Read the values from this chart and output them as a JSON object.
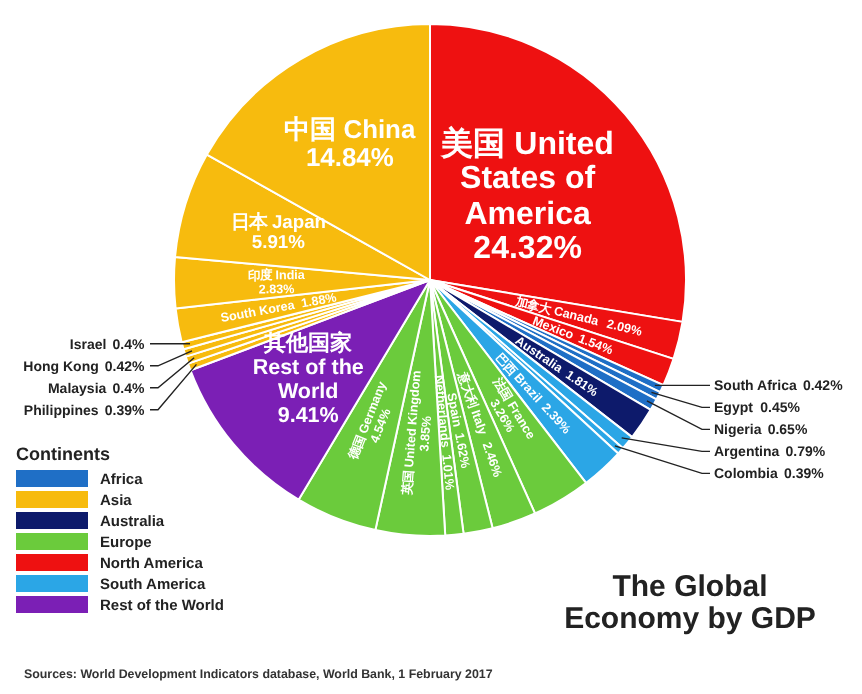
{
  "chart_data": {
    "type": "other",
    "title": "The Global Economy by GDP",
    "legend_title": "Continents",
    "legend": "bottom left",
    "annotations": [
      "Sources: World Development Indicators database, World Bank, 1 February 2017"
    ],
    "categories": [
      "美国 United States of America",
      "加拿大 Canada",
      "Mexico",
      "South Africa",
      "Egypt",
      "Nigeria",
      "Australia",
      "Argentina",
      "Colombia",
      "巴西 Brazil",
      "法国 France",
      "意大利 Italy",
      "Spain",
      "Netherlands",
      "英国 United Kingdom",
      "德国 Germany",
      "其他国家 Rest of the World",
      "Philippines",
      "Malaysia",
      "Hong Kong",
      "Israel",
      "South Korea",
      "印度 India",
      "日本 Japan",
      "中国 China"
    ],
    "series": [
      {
        "name": "Africa",
        "color": "#1f6fc6",
        "values": [
          null,
          null,
          null,
          0.42,
          0.45,
          0.65,
          null,
          null,
          null,
          null,
          null,
          null,
          null,
          null,
          null,
          null,
          null,
          null,
          null,
          null,
          null,
          null,
          null,
          null,
          null
        ],
        "value_labels": [
          null,
          null,
          null,
          "0.42%",
          "0.45%",
          "0.65%",
          null,
          null,
          null,
          null,
          null,
          null,
          null,
          null,
          null,
          null,
          null,
          null,
          null,
          null,
          null,
          null,
          null,
          null,
          null
        ]
      },
      {
        "name": "Asia",
        "color": "#f7bb0e",
        "values": [
          null,
          null,
          null,
          null,
          null,
          null,
          null,
          null,
          null,
          null,
          null,
          null,
          null,
          null,
          null,
          null,
          null,
          0.39,
          0.4,
          0.42,
          0.4,
          1.88,
          2.83,
          5.91,
          14.84
        ],
        "value_labels": [
          null,
          null,
          null,
          null,
          null,
          null,
          null,
          null,
          null,
          null,
          null,
          null,
          null,
          null,
          null,
          null,
          null,
          "0.39%",
          "0.4%",
          "0.42%",
          "0.4%",
          "1.88%",
          "2.83%",
          "5.91%",
          "14.84%"
        ]
      },
      {
        "name": "Australia",
        "color": "#0d1a6b",
        "values": [
          null,
          null,
          null,
          null,
          null,
          null,
          1.81,
          null,
          null,
          null,
          null,
          null,
          null,
          null,
          null,
          null,
          null,
          null,
          null,
          null,
          null,
          null,
          null,
          null,
          null
        ],
        "value_labels": [
          null,
          null,
          null,
          null,
          null,
          null,
          "1.81%",
          null,
          null,
          null,
          null,
          null,
          null,
          null,
          null,
          null,
          null,
          null,
          null,
          null,
          null,
          null,
          null,
          null,
          null
        ]
      },
      {
        "name": "Europe",
        "color": "#6bcb3c",
        "values": [
          null,
          null,
          null,
          null,
          null,
          null,
          null,
          null,
          null,
          null,
          3.26,
          2.46,
          1.62,
          1.01,
          3.85,
          4.54,
          null,
          null,
          null,
          null,
          null,
          null,
          null,
          null,
          null
        ],
        "value_labels": [
          null,
          null,
          null,
          null,
          null,
          null,
          null,
          null,
          null,
          null,
          "3.26%",
          "2.46%",
          "1.62%",
          "1.01%",
          "3.85%",
          "4.54%",
          null,
          null,
          null,
          null,
          null,
          null,
          null,
          null,
          null
        ]
      },
      {
        "name": "North America",
        "color": "#ee1111",
        "values": [
          24.32,
          2.09,
          1.54,
          null,
          null,
          null,
          null,
          null,
          null,
          null,
          null,
          null,
          null,
          null,
          null,
          null,
          null,
          null,
          null,
          null,
          null,
          null,
          null,
          null,
          null
        ],
        "value_labels": [
          "24.32%",
          "2.09%",
          "1.54%",
          null,
          null,
          null,
          null,
          null,
          null,
          null,
          null,
          null,
          null,
          null,
          null,
          null,
          null,
          null,
          null,
          null,
          null,
          null,
          null,
          null,
          null
        ]
      },
      {
        "name": "South America",
        "color": "#2ba6e6",
        "values": [
          null,
          null,
          null,
          null,
          null,
          null,
          null,
          0.79,
          0.39,
          2.39,
          null,
          null,
          null,
          null,
          null,
          null,
          null,
          null,
          null,
          null,
          null,
          null,
          null,
          null,
          null
        ],
        "value_labels": [
          null,
          null,
          null,
          null,
          null,
          null,
          null,
          "0.79%",
          "0.39%",
          "2.39%",
          null,
          null,
          null,
          null,
          null,
          null,
          null,
          null,
          null,
          null,
          null,
          null,
          null,
          null,
          null
        ]
      },
      {
        "name": "Rest of the World",
        "color": "#7b1fb5",
        "values": [
          null,
          null,
          null,
          null,
          null,
          null,
          null,
          null,
          null,
          null,
          null,
          null,
          null,
          null,
          null,
          null,
          9.41,
          null,
          null,
          null,
          null,
          null,
          null,
          null,
          null
        ],
        "value_labels": [
          null,
          null,
          null,
          null,
          null,
          null,
          null,
          null,
          null,
          null,
          null,
          null,
          null,
          null,
          null,
          null,
          "9.41%",
          null,
          null,
          null,
          null,
          null,
          null,
          null,
          null
        ]
      }
    ]
  }
}
